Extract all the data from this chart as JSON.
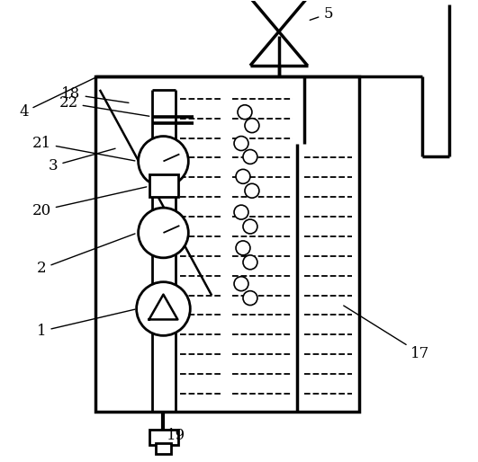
{
  "bg_color": "#ffffff",
  "line_color": "#000000",
  "lw": 2.0,
  "fig_width": 5.31,
  "fig_height": 5.14,
  "dpi": 100
}
